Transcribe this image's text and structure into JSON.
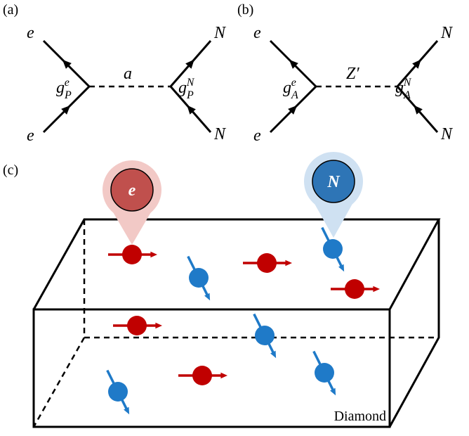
{
  "panels": {
    "a": {
      "label": "(a)",
      "top_left": "e",
      "bottom_left": "e",
      "top_right": "N",
      "bottom_right": "N",
      "mediator": "a",
      "left_coupling": {
        "base": "g",
        "sub": "P",
        "sup": "e"
      },
      "right_coupling": {
        "base": "g",
        "sub": "P",
        "sup": "N"
      }
    },
    "b": {
      "label": "(b)",
      "top_left": "e",
      "bottom_left": "e",
      "top_right": "N",
      "bottom_right": "N",
      "mediator": "Z′",
      "left_coupling": {
        "base": "g",
        "sub": "A",
        "sup": "e"
      },
      "right_coupling": {
        "base": "g",
        "sub": "A",
        "sup": "N"
      }
    },
    "c": {
      "label": "(c)",
      "electron": "e",
      "nucleus": "N",
      "material": "Diamond"
    }
  }
}
